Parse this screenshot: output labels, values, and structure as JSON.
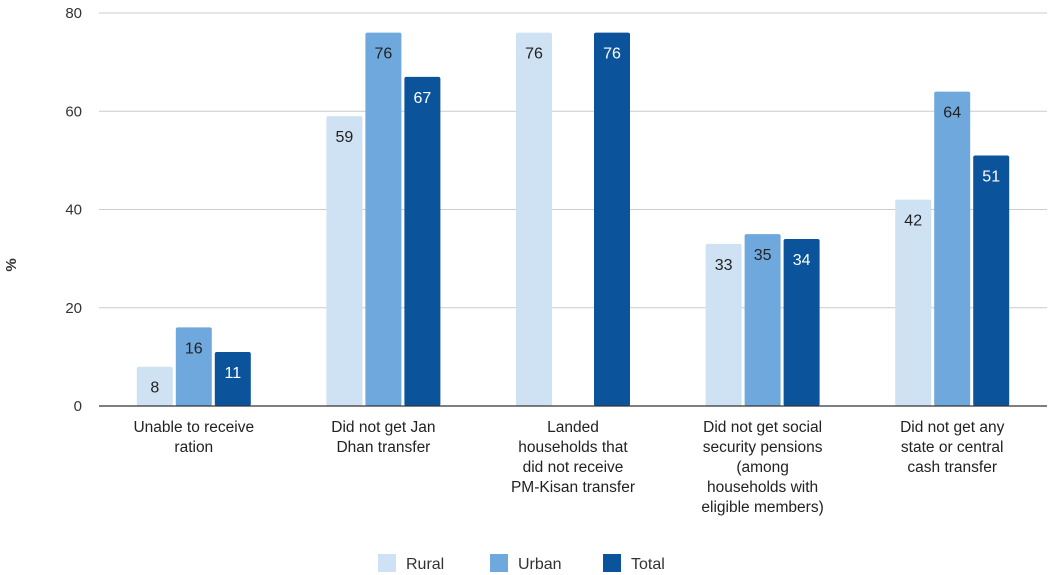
{
  "chart_data": {
    "type": "bar",
    "title": "",
    "xlabel": "",
    "ylabel": "%",
    "ylim": [
      0,
      80
    ],
    "yticks": [
      0,
      20,
      40,
      60,
      80
    ],
    "grid": true,
    "legend_position": "bottom",
    "categories": [
      [
        "Unable to receive",
        "ration"
      ],
      [
        "Did not get Jan",
        "Dhan transfer"
      ],
      [
        "Landed",
        "households that",
        "did not receive",
        "PM-Kisan transfer"
      ],
      [
        "Did not get social",
        "security pensions",
        "(among",
        "households with",
        "eligible members)"
      ],
      [
        "Did not get any",
        "state or central",
        "cash transfer"
      ]
    ],
    "series": [
      {
        "name": "Rural",
        "color": "#cfe2f3",
        "label_color": "#222222",
        "values": [
          8,
          59,
          76,
          33,
          42
        ]
      },
      {
        "name": "Urban",
        "color": "#6fa8dc",
        "label_color": "#222222",
        "values": [
          16,
          76,
          null,
          35,
          64
        ]
      },
      {
        "name": "Total",
        "color": "#0b539b",
        "label_color": "#ffffff",
        "values": [
          11,
          67,
          76,
          34,
          51
        ]
      }
    ]
  }
}
